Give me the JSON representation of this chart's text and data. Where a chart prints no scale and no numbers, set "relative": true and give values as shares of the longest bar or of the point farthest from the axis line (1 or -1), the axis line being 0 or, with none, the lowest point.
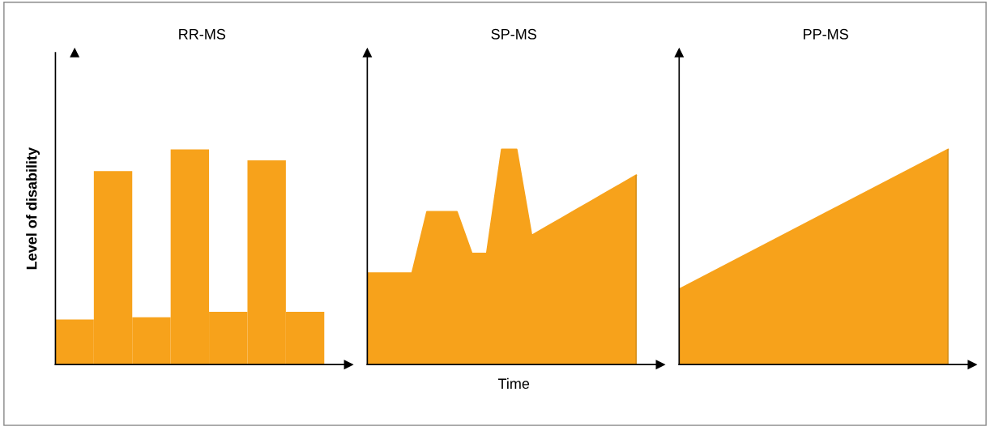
{
  "chart_data": [
    {
      "type": "bar",
      "title": "RR-MS",
      "ylabel": "Level of disability",
      "relative": true,
      "tick_labels": false,
      "categories": [
        null,
        null,
        null,
        null,
        null,
        null,
        null
      ],
      "series": [
        {
          "color": "#f7a21b",
          "values": [
            0.21,
            0.9,
            0.22,
            1,
            0.245,
            0.95,
            0.245
          ]
        }
      ]
    },
    {
      "type": "area",
      "title": "SP-MS",
      "xlabel": "Time",
      "relative": true,
      "tick_labels": false,
      "categories": [
        null,
        null,
        null,
        null,
        null,
        null,
        null,
        null,
        null,
        null,
        null,
        null,
        null,
        null,
        null,
        null,
        null,
        null,
        null
      ],
      "series": [
        {
          "color": "#f7a21b",
          "values": [
            0.425,
            0.425,
            0.425,
            0.425,
            0.71,
            0.71,
            0.71,
            0.516,
            0.516,
            1,
            1,
            0.6,
            0.64,
            0.68,
            0.72,
            0.76,
            0.8,
            0.84,
            0.88
          ]
        }
      ]
    },
    {
      "type": "area",
      "title": "PP-MS",
      "relative": true,
      "tick_labels": false,
      "categories": [
        null,
        null
      ],
      "series": [
        {
          "color": "#f7a21b",
          "values": [
            0.35,
            1
          ]
        }
      ]
    }
  ]
}
